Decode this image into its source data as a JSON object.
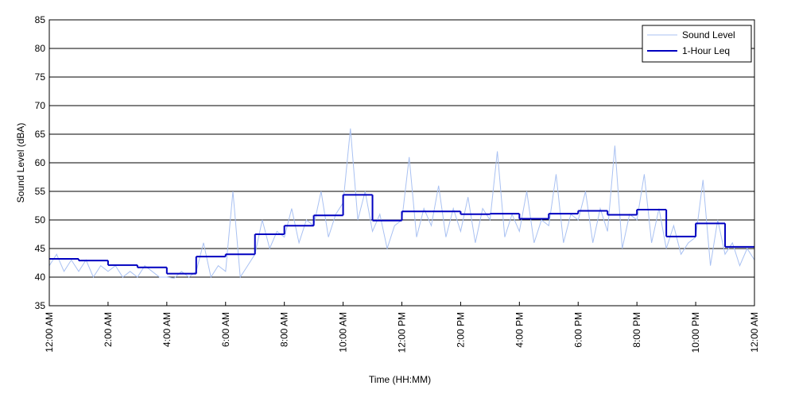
{
  "chart_data": {
    "type": "line",
    "xlabel": "Time (HH:MM)",
    "ylabel": "Sound Level (dBA)",
    "xlim": [
      0,
      24
    ],
    "ylim": [
      35,
      85
    ],
    "yticks": [
      35,
      40,
      45,
      50,
      55,
      60,
      65,
      70,
      75,
      80,
      85
    ],
    "xticks": [
      {
        "value": 0,
        "label": "12:00 AM"
      },
      {
        "value": 2,
        "label": "2:00 AM"
      },
      {
        "value": 4,
        "label": "4:00 AM"
      },
      {
        "value": 6,
        "label": "6:00 AM"
      },
      {
        "value": 8,
        "label": "8:00 AM"
      },
      {
        "value": 10,
        "label": "10:00 AM"
      },
      {
        "value": 12,
        "label": "12:00 PM"
      },
      {
        "value": 14,
        "label": "2:00 PM"
      },
      {
        "value": 16,
        "label": "4:00 PM"
      },
      {
        "value": 18,
        "label": "6:00 PM"
      },
      {
        "value": 20,
        "label": "8:00 PM"
      },
      {
        "value": 22,
        "label": "10:00 PM"
      },
      {
        "value": 24,
        "label": "12:00 AM"
      }
    ],
    "grid": true,
    "legend": "upper right",
    "series": [
      {
        "name": "Sound Level",
        "color": "#a9c1f2",
        "x": [
          0,
          0.25,
          0.5,
          0.75,
          1,
          1.25,
          1.5,
          1.75,
          2,
          2.25,
          2.5,
          2.75,
          3,
          3.25,
          3.5,
          3.75,
          4,
          4.25,
          4.5,
          4.75,
          5,
          5.25,
          5.5,
          5.75,
          6,
          6.25,
          6.5,
          6.75,
          7,
          7.25,
          7.5,
          7.75,
          8,
          8.25,
          8.5,
          8.75,
          9,
          9.25,
          9.5,
          9.75,
          10,
          10.25,
          10.5,
          10.75,
          11,
          11.25,
          11.5,
          11.75,
          12,
          12.25,
          12.5,
          12.75,
          13,
          13.25,
          13.5,
          13.75,
          14,
          14.25,
          14.5,
          14.75,
          15,
          15.25,
          15.5,
          15.75,
          16,
          16.25,
          16.5,
          16.75,
          17,
          17.25,
          17.5,
          17.75,
          18,
          18.25,
          18.5,
          18.75,
          19,
          19.25,
          19.5,
          19.75,
          20,
          20.25,
          20.5,
          20.75,
          21,
          21.25,
          21.5,
          21.75,
          22,
          22.25,
          22.5,
          22.75,
          23,
          23.25,
          23.5,
          23.75,
          24
        ],
        "values": [
          42,
          44,
          41,
          43,
          41,
          43,
          40,
          42,
          41,
          42,
          40,
          41,
          40,
          42,
          41,
          40,
          40,
          39.8,
          41,
          40,
          41,
          46,
          40,
          42,
          41,
          55,
          40,
          42,
          44,
          50,
          45,
          48,
          47,
          52,
          46,
          50,
          49,
          55,
          47,
          51,
          53,
          66,
          50,
          55,
          48,
          51,
          45,
          49,
          50,
          61,
          47,
          52,
          49,
          56,
          47,
          52,
          48,
          54,
          46,
          52,
          50,
          62,
          47,
          51,
          48,
          55,
          46,
          50,
          49,
          58,
          46,
          51,
          50,
          55,
          46,
          52,
          48,
          63,
          45,
          51,
          50,
          58,
          46,
          52,
          45,
          49,
          44,
          46,
          47,
          57,
          42,
          50,
          44,
          46,
          42,
          45,
          43
        ]
      },
      {
        "name": "1-Hour Leq",
        "color": "#0000c0",
        "drawstyle": "steps-post",
        "x": [
          0,
          1,
          2,
          3,
          4,
          5,
          6,
          7,
          8,
          9,
          10,
          11,
          12,
          13,
          14,
          15,
          16,
          17,
          18,
          19,
          20,
          21,
          22,
          23
        ],
        "values": [
          43.2,
          42.9,
          42.1,
          41.7,
          40.6,
          43.6,
          44.0,
          47.5,
          49.0,
          50.8,
          54.4,
          49.9,
          51.5,
          51.5,
          51.0,
          51.1,
          50.2,
          51.1,
          51.6,
          50.9,
          51.8,
          47.1,
          49.4,
          45.3
        ]
      }
    ]
  }
}
